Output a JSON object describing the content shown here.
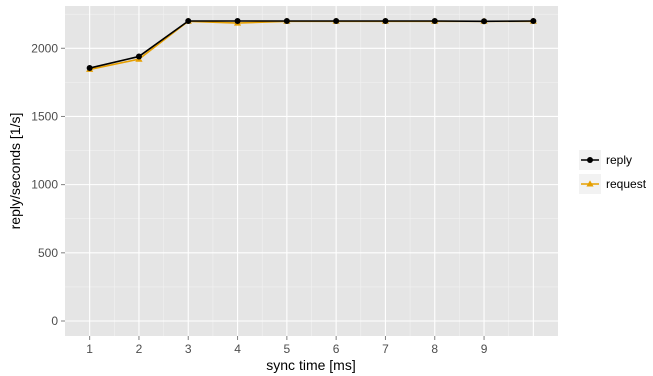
{
  "chart_data": {
    "type": "line",
    "title": "",
    "xlabel": "sync time [ms]",
    "ylabel": "reply/seconds [1/s]",
    "x": [
      1,
      2,
      3,
      4,
      5,
      6,
      7,
      8,
      9,
      10
    ],
    "xticks": [
      1,
      2,
      3,
      4,
      5,
      6,
      7,
      8,
      9
    ],
    "xlim": [
      0.5,
      10.5
    ],
    "yticks": [
      0,
      500,
      1000,
      1500,
      2000
    ],
    "ylim": [
      -110,
      2310
    ],
    "grid": true,
    "legend_position": "right",
    "background": "#e5e5e5",
    "series": [
      {
        "name": "reply",
        "color": "#000000",
        "marker": "circle",
        "values": [
          1855,
          1940,
          2200,
          2200,
          2200,
          2200,
          2200,
          2200,
          2198,
          2200
        ]
      },
      {
        "name": "request",
        "color": "#e69f00",
        "marker": "triangle",
        "values": [
          1845,
          1920,
          2198,
          2185,
          2198,
          2198,
          2198,
          2198,
          2198,
          2198
        ]
      }
    ]
  }
}
